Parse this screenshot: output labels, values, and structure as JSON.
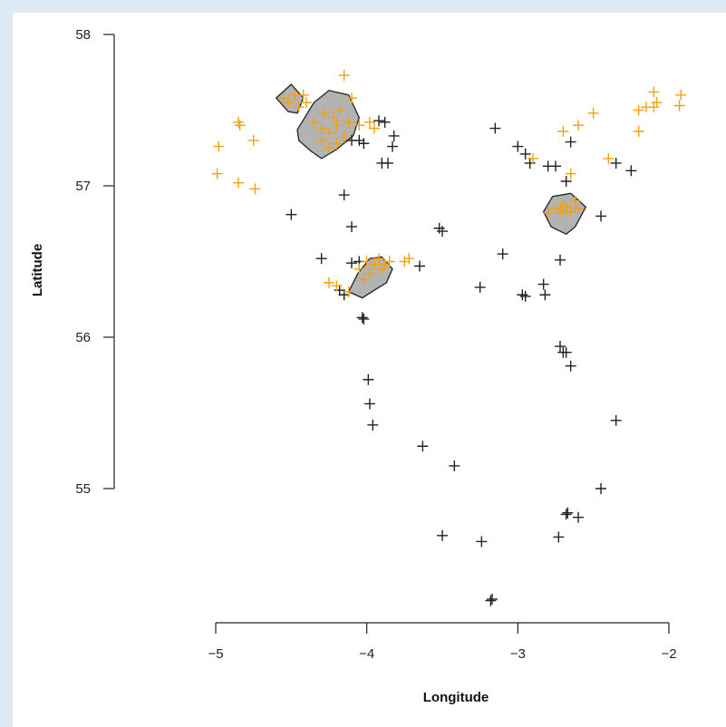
{
  "chart_data": {
    "type": "scatter",
    "title": "",
    "xlabel": "Longitude",
    "ylabel": "Latitude",
    "xlim": [
      -5.2,
      -1.9
    ],
    "ylim": [
      54.0,
      58.0
    ],
    "x_ticks": [
      -5,
      -4,
      -3,
      -2
    ],
    "x_tick_labels": [
      "−5",
      "−4",
      "−3",
      "−2"
    ],
    "y_ticks": [
      55,
      56,
      57,
      58
    ],
    "y_tick_labels": [
      "55",
      "56",
      "57",
      "58"
    ],
    "grid": false,
    "legend": "none",
    "series": [
      {
        "color": "#222222",
        "marker": "plus",
        "points": [
          [
            -4.1,
            57.3
          ],
          [
            -3.92,
            57.43
          ],
          [
            -3.88,
            57.42
          ],
          [
            -4.05,
            57.3
          ],
          [
            -4.02,
            57.28
          ],
          [
            -3.82,
            57.33
          ],
          [
            -3.83,
            57.26
          ],
          [
            -3.9,
            57.15
          ],
          [
            -3.86,
            57.15
          ],
          [
            -3.15,
            57.38
          ],
          [
            -3.0,
            57.26
          ],
          [
            -2.95,
            57.21
          ],
          [
            -2.92,
            57.15
          ],
          [
            -2.8,
            57.13
          ],
          [
            -2.75,
            57.13
          ],
          [
            -2.65,
            57.29
          ],
          [
            -2.68,
            57.03
          ],
          [
            -2.35,
            57.15
          ],
          [
            -2.25,
            57.1
          ],
          [
            -4.15,
            56.94
          ],
          [
            -4.5,
            56.81
          ],
          [
            -4.1,
            56.73
          ],
          [
            -3.52,
            56.72
          ],
          [
            -3.5,
            56.7
          ],
          [
            -2.45,
            56.8
          ],
          [
            -2.72,
            56.51
          ],
          [
            -3.1,
            56.55
          ],
          [
            -4.3,
            56.52
          ],
          [
            -4.1,
            56.49
          ],
          [
            -4.05,
            56.5
          ],
          [
            -3.65,
            56.47
          ],
          [
            -3.25,
            56.33
          ],
          [
            -2.95,
            56.27
          ],
          [
            -2.97,
            56.28
          ],
          [
            -2.83,
            56.35
          ],
          [
            -2.82,
            56.28
          ],
          [
            -4.15,
            56.28
          ],
          [
            -4.18,
            56.31
          ],
          [
            -4.02,
            56.12
          ],
          [
            -4.03,
            56.13
          ],
          [
            -2.72,
            55.94
          ],
          [
            -2.7,
            55.9
          ],
          [
            -2.68,
            55.9
          ],
          [
            -2.65,
            55.81
          ],
          [
            -2.35,
            55.45
          ],
          [
            -3.99,
            55.72
          ],
          [
            -3.98,
            55.56
          ],
          [
            -3.96,
            55.42
          ],
          [
            -3.63,
            55.28
          ],
          [
            -3.42,
            55.15
          ],
          [
            -2.45,
            55.0
          ],
          [
            -2.68,
            54.83
          ],
          [
            -2.67,
            54.84
          ],
          [
            -2.6,
            54.81
          ],
          [
            -3.5,
            54.69
          ],
          [
            -3.24,
            54.65
          ],
          [
            -2.73,
            54.68
          ],
          [
            -3.18,
            54.26
          ],
          [
            -3.17,
            54.27
          ]
        ]
      },
      {
        "color": "#f5a00f",
        "marker": "plus",
        "points": [
          [
            -4.55,
            57.58
          ],
          [
            -4.52,
            57.55
          ],
          [
            -4.48,
            57.6
          ],
          [
            -4.45,
            57.52
          ],
          [
            -4.42,
            57.6
          ],
          [
            -4.4,
            57.55
          ],
          [
            -4.35,
            57.42
          ],
          [
            -4.3,
            57.38
          ],
          [
            -4.28,
            57.48
          ],
          [
            -4.25,
            57.35
          ],
          [
            -4.22,
            57.45
          ],
          [
            -4.2,
            57.4
          ],
          [
            -4.18,
            57.5
          ],
          [
            -4.15,
            57.32
          ],
          [
            -4.12,
            57.42
          ],
          [
            -4.3,
            57.3
          ],
          [
            -4.25,
            57.25
          ],
          [
            -4.2,
            57.28
          ],
          [
            -4.15,
            57.73
          ],
          [
            -4.1,
            57.58
          ],
          [
            -3.98,
            57.42
          ],
          [
            -3.95,
            57.38
          ],
          [
            -4.05,
            57.4
          ],
          [
            -4.85,
            57.42
          ],
          [
            -4.84,
            57.4
          ],
          [
            -4.75,
            57.3
          ],
          [
            -4.98,
            57.26
          ],
          [
            -4.99,
            57.08
          ],
          [
            -4.85,
            57.02
          ],
          [
            -4.74,
            56.98
          ],
          [
            -2.9,
            57.18
          ],
          [
            -2.65,
            57.08
          ],
          [
            -2.7,
            57.36
          ],
          [
            -2.6,
            57.4
          ],
          [
            -2.5,
            57.48
          ],
          [
            -2.2,
            57.5
          ],
          [
            -2.15,
            57.52
          ],
          [
            -2.1,
            57.52
          ],
          [
            -2.08,
            57.55
          ],
          [
            -2.1,
            57.62
          ],
          [
            -1.92,
            57.6
          ],
          [
            -1.93,
            57.53
          ],
          [
            -2.2,
            57.36
          ],
          [
            -2.4,
            57.18
          ],
          [
            -2.72,
            56.84
          ],
          [
            -2.7,
            56.82
          ],
          [
            -2.68,
            56.86
          ],
          [
            -2.65,
            56.83
          ],
          [
            -2.75,
            56.85
          ],
          [
            -2.8,
            56.82
          ],
          [
            -2.6,
            56.85
          ],
          [
            -2.62,
            56.9
          ],
          [
            -2.7,
            56.88
          ],
          [
            -4.05,
            56.45
          ],
          [
            -4.0,
            56.5
          ],
          [
            -3.95,
            56.48
          ],
          [
            -3.9,
            56.45
          ],
          [
            -3.98,
            56.42
          ],
          [
            -4.02,
            56.38
          ],
          [
            -3.92,
            56.52
          ],
          [
            -3.88,
            56.48
          ],
          [
            -3.85,
            56.5
          ],
          [
            -3.75,
            56.5
          ],
          [
            -3.72,
            56.52
          ],
          [
            -4.25,
            56.36
          ],
          [
            -4.2,
            56.34
          ],
          [
            -4.12,
            56.3
          ]
        ]
      }
    ],
    "regions": [
      {
        "polygon": [
          [
            -4.6,
            57.58
          ],
          [
            -4.5,
            57.67
          ],
          [
            -4.42,
            57.58
          ],
          [
            -4.46,
            57.48
          ],
          [
            -4.52,
            57.49
          ]
        ]
      },
      {
        "polygon": [
          [
            -4.46,
            57.37
          ],
          [
            -4.35,
            57.55
          ],
          [
            -4.25,
            57.63
          ],
          [
            -4.12,
            57.6
          ],
          [
            -4.05,
            57.45
          ],
          [
            -4.09,
            57.33
          ],
          [
            -4.2,
            57.24
          ],
          [
            -4.3,
            57.18
          ],
          [
            -4.37,
            57.23
          ],
          [
            -4.45,
            57.3
          ]
        ]
      },
      {
        "polygon": [
          [
            -2.83,
            56.83
          ],
          [
            -2.77,
            56.93
          ],
          [
            -2.65,
            56.95
          ],
          [
            -2.55,
            56.86
          ],
          [
            -2.62,
            56.73
          ],
          [
            -2.68,
            56.68
          ],
          [
            -2.78,
            56.73
          ]
        ]
      },
      {
        "polygon": [
          [
            -4.12,
            56.3
          ],
          [
            -4.06,
            56.42
          ],
          [
            -3.98,
            56.52
          ],
          [
            -3.9,
            56.53
          ],
          [
            -3.83,
            56.45
          ],
          [
            -3.87,
            56.36
          ],
          [
            -3.95,
            56.31
          ],
          [
            -4.03,
            56.26
          ]
        ]
      }
    ]
  }
}
